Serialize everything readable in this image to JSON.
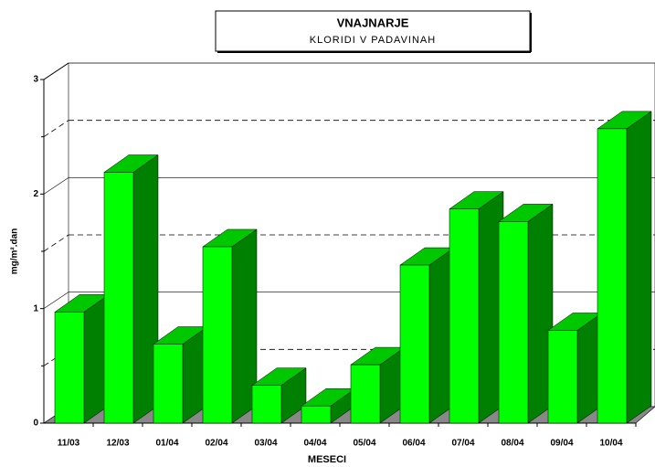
{
  "chart_data": {
    "type": "bar3d",
    "title": "VNAJNARJE",
    "subtitle": "KLORIDI V PADAVINAH",
    "x_label": "MESECI",
    "y_label": "mg/m².dan",
    "categories": [
      "11/03",
      "12/03",
      "01/04",
      "02/04",
      "03/04",
      "04/04",
      "05/04",
      "06/04",
      "07/04",
      "08/04",
      "09/04",
      "10/04"
    ],
    "values": [
      0.97,
      2.19,
      0.69,
      1.54,
      0.33,
      0.15,
      0.51,
      1.38,
      1.87,
      1.76,
      0.81,
      2.57
    ],
    "colors": {
      "front": "#00ff00",
      "top": "#00c800",
      "side": "#008000"
    },
    "ylim": [
      0,
      3
    ],
    "yticks": [
      0,
      1,
      2,
      3
    ],
    "minor_yticks": [
      0.5,
      1.5,
      2.5
    ],
    "grid": true
  }
}
